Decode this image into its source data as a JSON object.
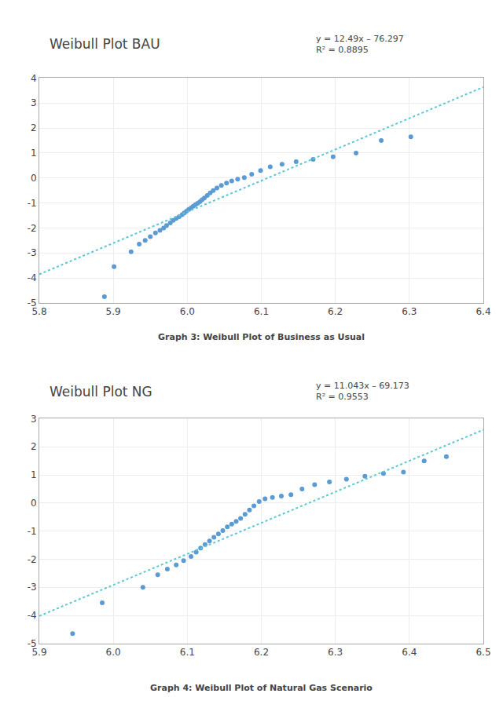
{
  "chart_data": [
    {
      "type": "scatter",
      "title": "Weibull Plot BAU",
      "annotations": [
        "y = 12.49x – 76.297",
        "R² = 0.8895"
      ],
      "caption": "Graph 3: Weibull Plot of Business as Usual",
      "xlim": [
        5.8,
        6.4
      ],
      "ylim": [
        -5,
        4
      ],
      "xticks": [
        5.8,
        5.9,
        {
          "value": 6.0,
          "label": "6.0"
        },
        6.1,
        6.2,
        6.3,
        6.4
      ],
      "yticks": [
        -5,
        -4,
        -3,
        -2,
        -1,
        0,
        1,
        2,
        3,
        4
      ],
      "grid": true,
      "series": [
        {
          "type": "scatter",
          "marker": "circle",
          "color": "#5B9BD5",
          "x": [
            5.888,
            5.901,
            5.924,
            5.935,
            5.943,
            5.95,
            5.957,
            5.963,
            5.968,
            5.972,
            5.977,
            5.981,
            5.985,
            5.989,
            5.993,
            5.996,
            5.999,
            6.002,
            6.005,
            6.008,
            6.011,
            6.014,
            6.017,
            6.02,
            6.023,
            6.027,
            6.031,
            6.035,
            6.04,
            6.046,
            6.053,
            6.06,
            6.068,
            6.077,
            6.087,
            6.099,
            6.112,
            6.128,
            6.147,
            6.17,
            6.197,
            6.228,
            6.262,
            6.302
          ],
          "values": [
            -4.75,
            -3.55,
            -2.95,
            -2.65,
            -2.5,
            -2.35,
            -2.2,
            -2.1,
            -2.0,
            -1.9,
            -1.8,
            -1.7,
            -1.62,
            -1.55,
            -1.47,
            -1.4,
            -1.33,
            -1.26,
            -1.2,
            -1.13,
            -1.07,
            -1.01,
            -0.95,
            -0.87,
            -0.8,
            -0.7,
            -0.6,
            -0.5,
            -0.4,
            -0.3,
            -0.2,
            -0.12,
            -0.05,
            0.02,
            0.15,
            0.3,
            0.45,
            0.55,
            0.65,
            0.75,
            0.85,
            1.0,
            1.5,
            1.65
          ]
        },
        {
          "type": "line",
          "line_style": "dotted",
          "color": "#5BC8D4",
          "x": [
            5.8,
            6.4
          ],
          "values": [
            -3.855,
            3.639
          ]
        }
      ]
    },
    {
      "type": "scatter",
      "title": "Weibull Plot NG",
      "annotations": [
        "y = 11.043x – 69.173",
        "R² = 0.9553"
      ],
      "caption": "Graph 4: Weibull Plot of Natural Gas Scenario",
      "xlim": [
        5.9,
        6.5
      ],
      "ylim": [
        -5,
        3
      ],
      "xticks": [
        5.9,
        {
          "value": 6.0,
          "label": "6.0"
        },
        6.1,
        6.2,
        6.3,
        6.4,
        6.5
      ],
      "yticks": [
        -5,
        -4,
        -3,
        -2,
        -1,
        0,
        1,
        2,
        3
      ],
      "grid": true,
      "series": [
        {
          "type": "scatter",
          "marker": "circle",
          "color": "#5B9BD5",
          "x": [
            5.945,
            5.985,
            6.04,
            6.06,
            6.073,
            6.085,
            6.095,
            6.105,
            6.112,
            6.118,
            6.124,
            6.13,
            6.136,
            6.142,
            6.148,
            6.154,
            6.16,
            6.166,
            6.172,
            6.178,
            6.184,
            6.19,
            6.197,
            6.205,
            6.215,
            6.227,
            6.24,
            6.255,
            6.272,
            6.292,
            6.315,
            6.34,
            6.365,
            6.392,
            6.42,
            6.45
          ],
          "values": [
            -4.65,
            -3.55,
            -3.0,
            -2.55,
            -2.35,
            -2.2,
            -2.05,
            -1.9,
            -1.75,
            -1.6,
            -1.48,
            -1.35,
            -1.22,
            -1.1,
            -0.98,
            -0.85,
            -0.75,
            -0.65,
            -0.55,
            -0.4,
            -0.25,
            -0.1,
            0.05,
            0.15,
            0.2,
            0.25,
            0.3,
            0.5,
            0.65,
            0.75,
            0.85,
            0.95,
            1.05,
            1.1,
            1.5,
            1.65
          ]
        },
        {
          "type": "line",
          "line_style": "dotted",
          "color": "#5BC8D4",
          "x": [
            5.9,
            6.5
          ],
          "values": [
            -4.0193,
            2.6065
          ]
        }
      ]
    }
  ]
}
